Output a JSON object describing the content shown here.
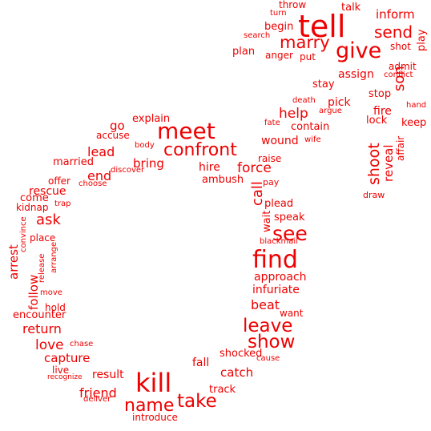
{
  "color": "#ee0000",
  "words": [
    {
      "text": "tell",
      "vertical": false
    },
    {
      "text": "give",
      "vertical": false
    },
    {
      "text": "marry",
      "vertical": false
    },
    {
      "text": "send",
      "vertical": false
    },
    {
      "text": "inform",
      "vertical": false
    },
    {
      "text": "talk",
      "vertical": false
    },
    {
      "text": "throw",
      "vertical": false
    },
    {
      "text": "turn",
      "vertical": false
    },
    {
      "text": "begin",
      "vertical": false
    },
    {
      "text": "search",
      "vertical": false
    },
    {
      "text": "plan",
      "vertical": false
    },
    {
      "text": "anger",
      "vertical": false
    },
    {
      "text": "put",
      "vertical": false
    },
    {
      "text": "play",
      "vertical": true
    },
    {
      "text": "shot",
      "vertical": false
    },
    {
      "text": "admit",
      "vertical": false
    },
    {
      "text": "assign",
      "vertical": false
    },
    {
      "text": "conflict",
      "vertical": false
    },
    {
      "text": "stay",
      "vertical": false
    },
    {
      "text": "son",
      "vertical": true
    },
    {
      "text": "stop",
      "vertical": false
    },
    {
      "text": "hand",
      "vertical": false
    },
    {
      "text": "death",
      "vertical": false
    },
    {
      "text": "pick",
      "vertical": false
    },
    {
      "text": "argue",
      "vertical": false
    },
    {
      "text": "fire",
      "vertical": false
    },
    {
      "text": "help",
      "vertical": false
    },
    {
      "text": "fate",
      "vertical": false
    },
    {
      "text": "contain",
      "vertical": false
    },
    {
      "text": "lock",
      "vertical": false
    },
    {
      "text": "keep",
      "vertical": false
    },
    {
      "text": "explain",
      "vertical": false
    },
    {
      "text": "meet",
      "vertical": false
    },
    {
      "text": "go",
      "vertical": false
    },
    {
      "text": "accuse",
      "vertical": false
    },
    {
      "text": "body",
      "vertical": false
    },
    {
      "text": "confront",
      "vertical": false
    },
    {
      "text": "wound",
      "vertical": false
    },
    {
      "text": "wife",
      "vertical": false
    },
    {
      "text": "reveal",
      "vertical": true
    },
    {
      "text": "affair",
      "vertical": true
    },
    {
      "text": "shoot",
      "vertical": true
    },
    {
      "text": "lead",
      "vertical": false
    },
    {
      "text": "married",
      "vertical": false
    },
    {
      "text": "bring",
      "vertical": false
    },
    {
      "text": "force",
      "vertical": false
    },
    {
      "text": "raise",
      "vertical": false
    },
    {
      "text": "end",
      "vertical": false
    },
    {
      "text": "discover",
      "vertical": false
    },
    {
      "text": "hire",
      "vertical": false
    },
    {
      "text": "offer",
      "vertical": false
    },
    {
      "text": "choose",
      "vertical": false
    },
    {
      "text": "ambush",
      "vertical": false
    },
    {
      "text": "pay",
      "vertical": false
    },
    {
      "text": "draw",
      "vertical": false
    },
    {
      "text": "rescue",
      "vertical": false
    },
    {
      "text": "call",
      "vertical": true
    },
    {
      "text": "come",
      "vertical": false
    },
    {
      "text": "plead",
      "vertical": false
    },
    {
      "text": "kidnap",
      "vertical": false
    },
    {
      "text": "trap",
      "vertical": false
    },
    {
      "text": "wait",
      "vertical": true
    },
    {
      "text": "ask",
      "vertical": false
    },
    {
      "text": "speak",
      "vertical": false
    },
    {
      "text": "see",
      "vertical": false
    },
    {
      "text": "convince",
      "vertical": true
    },
    {
      "text": "place",
      "vertical": false
    },
    {
      "text": "blackmail",
      "vertical": false
    },
    {
      "text": "arrest",
      "vertical": true
    },
    {
      "text": "release",
      "vertical": true
    },
    {
      "text": "arrange",
      "vertical": true
    },
    {
      "text": "find",
      "vertical": false
    },
    {
      "text": "follow",
      "vertical": true
    },
    {
      "text": "approach",
      "vertical": false
    },
    {
      "text": "move",
      "vertical": false
    },
    {
      "text": "infuriate",
      "vertical": false
    },
    {
      "text": "hold",
      "vertical": false
    },
    {
      "text": "beat",
      "vertical": false
    },
    {
      "text": "encounter",
      "vertical": false
    },
    {
      "text": "want",
      "vertical": false
    },
    {
      "text": "return",
      "vertical": false
    },
    {
      "text": "leave",
      "vertical": false
    },
    {
      "text": "love",
      "vertical": false
    },
    {
      "text": "chase",
      "vertical": false
    },
    {
      "text": "show",
      "vertical": false
    },
    {
      "text": "capture",
      "vertical": false
    },
    {
      "text": "shocked",
      "vertical": false
    },
    {
      "text": "cause",
      "vertical": false
    },
    {
      "text": "fall",
      "vertical": false
    },
    {
      "text": "live",
      "vertical": false
    },
    {
      "text": "recognize",
      "vertical": false
    },
    {
      "text": "result",
      "vertical": false
    },
    {
      "text": "catch",
      "vertical": false
    },
    {
      "text": "kill",
      "vertical": false
    },
    {
      "text": "track",
      "vertical": false
    },
    {
      "text": "friend",
      "vertical": false
    },
    {
      "text": "deliver",
      "vertical": false
    },
    {
      "text": "take",
      "vertical": false
    },
    {
      "text": "name",
      "vertical": false
    },
    {
      "text": "introduce",
      "vertical": false
    }
  ]
}
